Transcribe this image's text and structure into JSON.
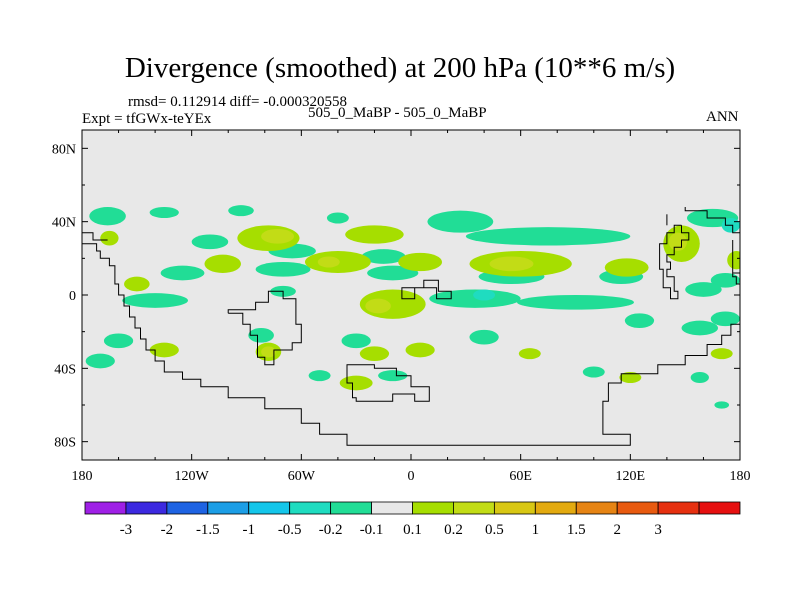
{
  "chart_data": {
    "type": "heatmap",
    "title": "Divergence (smoothed) at 200 hPa (10**6 m/s)",
    "stats_line": "rmsd= 0.112914 diff= -0.000320558",
    "experiment_label": "Expt = tfGWx-teYEx",
    "comparison_label": "505_0_MaBP - 505_0_MaBP",
    "season_label": "ANN",
    "x_axis": {
      "range": [
        -180,
        180
      ],
      "ticks": [
        {
          "value": -180,
          "label": "180"
        },
        {
          "value": -120,
          "label": "120W"
        },
        {
          "value": -60,
          "label": "60W"
        },
        {
          "value": 0,
          "label": "0"
        },
        {
          "value": 60,
          "label": "60E"
        },
        {
          "value": 120,
          "label": "120E"
        },
        {
          "value": 180,
          "label": "180"
        }
      ]
    },
    "y_axis": {
      "range": [
        -90,
        90
      ],
      "ticks": [
        {
          "value": 80,
          "label": "80N"
        },
        {
          "value": 40,
          "label": "40N"
        },
        {
          "value": 0,
          "label": "0"
        },
        {
          "value": -40,
          "label": "40S"
        },
        {
          "value": -80,
          "label": "80S"
        }
      ]
    },
    "colorbar": {
      "colors": [
        "#9f20e6",
        "#3c29e0",
        "#1e63e3",
        "#1c9ee6",
        "#14c6ea",
        "#1fdcc0",
        "#21dd96",
        "#e8e8e8",
        "#a6de00",
        "#c2dc16",
        "#d8c714",
        "#e3aa10",
        "#e68414",
        "#e85a10",
        "#e63010",
        "#e61010"
      ],
      "labels": [
        "-3",
        "-2",
        "-1.5",
        "-1",
        "-0.5",
        "-0.2",
        "-0.1",
        "0.1",
        "0.2",
        "0.5",
        "1",
        "1.5",
        "2",
        "3"
      ]
    },
    "field_blobs": [
      {
        "lon": -166,
        "lat": 43,
        "rx": 10,
        "ry": 5,
        "level": -0.15
      },
      {
        "lon": -135,
        "lat": 45,
        "rx": 8,
        "ry": 3,
        "level": -0.15
      },
      {
        "lon": -93,
        "lat": 46,
        "rx": 7,
        "ry": 3,
        "level": -0.15
      },
      {
        "lon": -40,
        "lat": 42,
        "rx": 6,
        "ry": 3,
        "level": -0.15
      },
      {
        "lon": 27,
        "lat": 40,
        "rx": 18,
        "ry": 6,
        "level": -0.15
      },
      {
        "lon": 165,
        "lat": 42,
        "rx": 14,
        "ry": 5,
        "level": -0.15
      },
      {
        "lon": 175,
        "lat": 38,
        "rx": 5,
        "ry": 4,
        "level": -0.3
      },
      {
        "lon": -110,
        "lat": 29,
        "rx": 10,
        "ry": 4,
        "level": -0.15
      },
      {
        "lon": -65,
        "lat": 24,
        "rx": 13,
        "ry": 4,
        "level": -0.15
      },
      {
        "lon": -15,
        "lat": 21,
        "rx": 12,
        "ry": 4,
        "level": -0.15
      },
      {
        "lon": 75,
        "lat": 32,
        "rx": 45,
        "ry": 5,
        "level": -0.15
      },
      {
        "lon": -165,
        "lat": 31,
        "rx": 5,
        "ry": 4,
        "level": 0.15
      },
      {
        "lon": -78,
        "lat": 31,
        "rx": 17,
        "ry": 7,
        "level": 0.15
      },
      {
        "lon": -73,
        "lat": 32,
        "rx": 9,
        "ry": 4,
        "level": 0.3
      },
      {
        "lon": -20,
        "lat": 33,
        "rx": 16,
        "ry": 5,
        "level": 0.15
      },
      {
        "lon": 148,
        "lat": 28,
        "rx": 10,
        "ry": 10,
        "level": 0.15
      },
      {
        "lon": 146,
        "lat": 29,
        "rx": 5,
        "ry": 5,
        "level": 0.3
      },
      {
        "lon": -125,
        "lat": 12,
        "rx": 12,
        "ry": 4,
        "level": -0.15
      },
      {
        "lon": -70,
        "lat": 14,
        "rx": 15,
        "ry": 4,
        "level": -0.15
      },
      {
        "lon": -10,
        "lat": 12,
        "rx": 14,
        "ry": 4,
        "level": -0.15
      },
      {
        "lon": 55,
        "lat": 10,
        "rx": 18,
        "ry": 4,
        "level": -0.15
      },
      {
        "lon": 115,
        "lat": 10,
        "rx": 12,
        "ry": 4,
        "level": -0.15
      },
      {
        "lon": 172,
        "lat": 8,
        "rx": 8,
        "ry": 4,
        "level": -0.15
      },
      {
        "lon": -103,
        "lat": 17,
        "rx": 10,
        "ry": 5,
        "level": 0.15
      },
      {
        "lon": -40,
        "lat": 18,
        "rx": 18,
        "ry": 6,
        "level": 0.15
      },
      {
        "lon": -45,
        "lat": 18,
        "rx": 6,
        "ry": 3,
        "level": 0.3
      },
      {
        "lon": 5,
        "lat": 18,
        "rx": 12,
        "ry": 5,
        "level": 0.15
      },
      {
        "lon": 60,
        "lat": 17,
        "rx": 28,
        "ry": 7,
        "level": 0.15
      },
      {
        "lon": 55,
        "lat": 17,
        "rx": 12,
        "ry": 4,
        "level": 0.3
      },
      {
        "lon": 118,
        "lat": 15,
        "rx": 12,
        "ry": 5,
        "level": 0.15
      },
      {
        "lon": 178,
        "lat": 19,
        "rx": 5,
        "ry": 5,
        "level": 0.15
      },
      {
        "lon": -140,
        "lat": -3,
        "rx": 18,
        "ry": 4,
        "level": -0.15
      },
      {
        "lon": -70,
        "lat": 2,
        "rx": 7,
        "ry": 3,
        "level": -0.15
      },
      {
        "lon": 35,
        "lat": -2,
        "rx": 25,
        "ry": 5,
        "level": -0.15
      },
      {
        "lon": 90,
        "lat": -4,
        "rx": 32,
        "ry": 4,
        "level": -0.15
      },
      {
        "lon": 40,
        "lat": 0,
        "rx": 6,
        "ry": 3,
        "level": -0.3
      },
      {
        "lon": 160,
        "lat": 3,
        "rx": 10,
        "ry": 4,
        "level": -0.15
      },
      {
        "lon": -150,
        "lat": 6,
        "rx": 7,
        "ry": 4,
        "level": 0.15
      },
      {
        "lon": -10,
        "lat": -5,
        "rx": 18,
        "ry": 8,
        "level": 0.15
      },
      {
        "lon": -18,
        "lat": -6,
        "rx": 7,
        "ry": 4,
        "level": 0.3
      },
      {
        "lon": 125,
        "lat": -14,
        "rx": 8,
        "ry": 4,
        "level": -0.15
      },
      {
        "lon": 158,
        "lat": -18,
        "rx": 10,
        "ry": 4,
        "level": -0.15
      },
      {
        "lon": 172,
        "lat": -13,
        "rx": 8,
        "ry": 4,
        "level": -0.15
      },
      {
        "lon": -160,
        "lat": -25,
        "rx": 8,
        "ry": 4,
        "level": -0.15
      },
      {
        "lon": -82,
        "lat": -22,
        "rx": 7,
        "ry": 4,
        "level": -0.15
      },
      {
        "lon": -30,
        "lat": -25,
        "rx": 8,
        "ry": 4,
        "level": -0.15
      },
      {
        "lon": 40,
        "lat": -23,
        "rx": 8,
        "ry": 4,
        "level": -0.15
      },
      {
        "lon": -135,
        "lat": -30,
        "rx": 8,
        "ry": 4,
        "level": 0.15
      },
      {
        "lon": -78,
        "lat": -31,
        "rx": 7,
        "ry": 5,
        "level": 0.15
      },
      {
        "lon": -78,
        "lat": -31,
        "rx": 4,
        "ry": 3,
        "level": 0.3
      },
      {
        "lon": -20,
        "lat": -32,
        "rx": 8,
        "ry": 4,
        "level": 0.15
      },
      {
        "lon": 5,
        "lat": -30,
        "rx": 8,
        "ry": 4,
        "level": 0.15
      },
      {
        "lon": 65,
        "lat": -32,
        "rx": 6,
        "ry": 3,
        "level": 0.15
      },
      {
        "lon": 170,
        "lat": -32,
        "rx": 6,
        "ry": 3,
        "level": 0.15
      },
      {
        "lon": -170,
        "lat": -36,
        "rx": 8,
        "ry": 4,
        "level": -0.15
      },
      {
        "lon": -50,
        "lat": -44,
        "rx": 6,
        "ry": 3,
        "level": -0.15
      },
      {
        "lon": -10,
        "lat": -44,
        "rx": 8,
        "ry": 3,
        "level": -0.15
      },
      {
        "lon": 100,
        "lat": -42,
        "rx": 6,
        "ry": 3,
        "level": -0.15
      },
      {
        "lon": 158,
        "lat": -45,
        "rx": 5,
        "ry": 3,
        "level": -0.15
      },
      {
        "lon": -30,
        "lat": -48,
        "rx": 9,
        "ry": 4,
        "level": 0.15
      },
      {
        "lon": 120,
        "lat": -45,
        "rx": 6,
        "ry": 3,
        "level": 0.15
      },
      {
        "lon": 170,
        "lat": -60,
        "rx": 4,
        "ry": 2,
        "level": -0.15
      }
    ],
    "coastlines": [
      [
        [
          -180,
          28
        ],
        [
          -172,
          28
        ],
        [
          -172,
          24
        ],
        [
          -170,
          24
        ],
        [
          -170,
          20
        ],
        [
          -165,
          20
        ],
        [
          -165,
          16
        ],
        [
          -162,
          16
        ],
        [
          -162,
          6
        ],
        [
          -160,
          6
        ],
        [
          -160,
          0
        ],
        [
          -157,
          0
        ],
        [
          -157,
          -6
        ],
        [
          -154,
          -6
        ],
        [
          -154,
          -12
        ],
        [
          -151,
          -12
        ],
        [
          -151,
          -18
        ],
        [
          -148,
          -18
        ],
        [
          -148,
          -24
        ],
        [
          -145,
          -24
        ],
        [
          -145,
          -30
        ],
        [
          -140,
          -30
        ],
        [
          -140,
          -36
        ],
        [
          -135,
          -36
        ],
        [
          -135,
          -42
        ],
        [
          -125,
          -42
        ],
        [
          -125,
          -46
        ],
        [
          -115,
          -46
        ],
        [
          -115,
          -50
        ],
        [
          -100,
          -50
        ],
        [
          -100,
          -56
        ],
        [
          -80,
          -56
        ],
        [
          -80,
          -62
        ],
        [
          -60,
          -62
        ],
        [
          -60,
          -70
        ],
        [
          -50,
          -70
        ],
        [
          -50,
          -76
        ],
        [
          -35,
          -76
        ],
        [
          -35,
          -82
        ],
        [
          120,
          -82
        ],
        [
          120,
          -76
        ],
        [
          105,
          -76
        ],
        [
          105,
          -58
        ],
        [
          108,
          -58
        ],
        [
          108,
          -48
        ],
        [
          115,
          -48
        ],
        [
          115,
          -43
        ],
        [
          135,
          -43
        ],
        [
          135,
          -38
        ],
        [
          150,
          -38
        ],
        [
          150,
          -33
        ],
        [
          162,
          -33
        ],
        [
          162,
          -27
        ],
        [
          170,
          -27
        ],
        [
          170,
          -22
        ],
        [
          175,
          -22
        ],
        [
          175,
          -16
        ],
        [
          180,
          -16
        ]
      ],
      [
        [
          -180,
          34
        ],
        [
          -174,
          34
        ],
        [
          -174,
          30
        ],
        [
          -166,
          30
        ]
      ],
      [
        [
          -100,
          -10
        ],
        [
          -92,
          -10
        ],
        [
          -92,
          -16
        ],
        [
          -88,
          -16
        ],
        [
          -88,
          -22
        ],
        [
          -84,
          -22
        ],
        [
          -84,
          -34
        ],
        [
          -80,
          -34
        ],
        [
          -80,
          -38
        ],
        [
          -75,
          -38
        ],
        [
          -75,
          -30
        ],
        [
          -65,
          -30
        ],
        [
          -65,
          -26
        ],
        [
          -60,
          -26
        ],
        [
          -60,
          -16
        ],
        [
          -63,
          -16
        ],
        [
          -63,
          -2
        ],
        [
          -70,
          -2
        ],
        [
          -70,
          2
        ],
        [
          -78,
          2
        ],
        [
          -78,
          -4
        ],
        [
          -85,
          -4
        ],
        [
          -85,
          -8
        ],
        [
          -100,
          -8
        ],
        [
          -100,
          -10
        ]
      ],
      [
        [
          -5,
          2
        ],
        [
          -5,
          -2
        ],
        [
          2,
          -2
        ],
        [
          2,
          4
        ],
        [
          14,
          4
        ],
        [
          14,
          -2
        ],
        [
          22,
          -2
        ],
        [
          22,
          2
        ],
        [
          15,
          2
        ],
        [
          15,
          8
        ],
        [
          7,
          8
        ],
        [
          7,
          4
        ],
        [
          -5,
          4
        ],
        [
          -5,
          2
        ]
      ],
      [
        [
          -35,
          -40
        ],
        [
          -35,
          -48
        ],
        [
          -32,
          -48
        ],
        [
          -32,
          -56
        ],
        [
          -30,
          -56
        ],
        [
          -30,
          -58
        ],
        [
          -10,
          -58
        ],
        [
          -10,
          -54
        ],
        [
          2,
          -54
        ],
        [
          2,
          -58
        ],
        [
          10,
          -58
        ],
        [
          10,
          -50
        ],
        [
          0,
          -50
        ],
        [
          0,
          -44
        ],
        [
          -8,
          -44
        ],
        [
          -8,
          -40
        ],
        [
          -20,
          -40
        ],
        [
          -20,
          -38
        ],
        [
          -35,
          -38
        ],
        [
          -35,
          -40
        ]
      ],
      [
        [
          148,
          38
        ],
        [
          148,
          34
        ],
        [
          152,
          34
        ],
        [
          152,
          30
        ],
        [
          148,
          30
        ],
        [
          148,
          26
        ],
        [
          144,
          26
        ],
        [
          144,
          22
        ],
        [
          140,
          22
        ],
        [
          140,
          18
        ],
        [
          142,
          18
        ],
        [
          142,
          14
        ],
        [
          140,
          14
        ],
        [
          140,
          10
        ],
        [
          144,
          10
        ],
        [
          144,
          2
        ],
        [
          146,
          2
        ],
        [
          146,
          -2
        ],
        [
          142,
          -2
        ],
        [
          142,
          4
        ],
        [
          138,
          4
        ],
        [
          138,
          14
        ],
        [
          136,
          14
        ],
        [
          136,
          28
        ],
        [
          140,
          28
        ],
        [
          140,
          34
        ],
        [
          144,
          34
        ],
        [
          144,
          38
        ],
        [
          148,
          38
        ]
      ],
      [
        [
          140,
          44
        ],
        [
          140,
          38
        ]
      ],
      [
        [
          150,
          48
        ],
        [
          150,
          46
        ],
        [
          162,
          46
        ],
        [
          162,
          42
        ],
        [
          172,
          42
        ],
        [
          172,
          38
        ],
        [
          176,
          38
        ],
        [
          176,
          34
        ],
        [
          180,
          34
        ]
      ],
      [
        [
          176,
          30
        ],
        [
          176,
          10
        ],
        [
          178,
          10
        ],
        [
          178,
          6
        ],
        [
          180,
          6
        ]
      ],
      [
        [
          180,
          12
        ],
        [
          176,
          12
        ]
      ]
    ]
  }
}
